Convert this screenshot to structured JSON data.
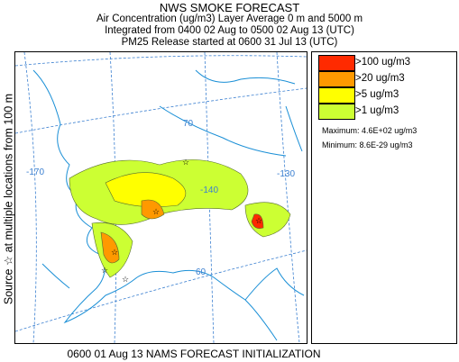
{
  "header": {
    "title": "NWS SMOKE FORECAST",
    "line2": "Air Concentration (ug/m3) Layer Average    0 m and  5000 m",
    "line3": "Integrated from 0400 02 Aug to 0500 02 Aug 13 (UTC)",
    "line4": "PM25 Release started at 0600 31 Jul 13 (UTC)"
  },
  "side_label": "Source ☆ at multiple locations from 100 m",
  "legend": {
    "items": [
      {
        "label": ">100 ug/m3",
        "color": "#ff2a00"
      },
      {
        "label": ">20 ug/m3",
        "color": "#ff9900"
      },
      {
        "label": ">5 ug/m3",
        "color": "#ffff00"
      },
      {
        "label": ">1 ug/m3",
        "color": "#ccff33"
      }
    ],
    "maximum": "Maximum: 4.6E+02 ug/m3",
    "minimum": "Minimum: 8.6E-29 ug/m3"
  },
  "graticule_labels": {
    "lat70": "70",
    "lon170": "-170",
    "lon140": "-140",
    "lon130": "-130",
    "lat60": "60"
  },
  "footer": "0600 01 Aug 13 NAMS FORECAST INITIALIZATION",
  "colors": {
    "coast": "#1a8fd6",
    "graticule": "#3a7fd0",
    "contour_gt1": "#ccff33",
    "contour_gt5": "#ffff00",
    "contour_gt20": "#ff9900",
    "contour_gt100": "#ff2a00"
  }
}
